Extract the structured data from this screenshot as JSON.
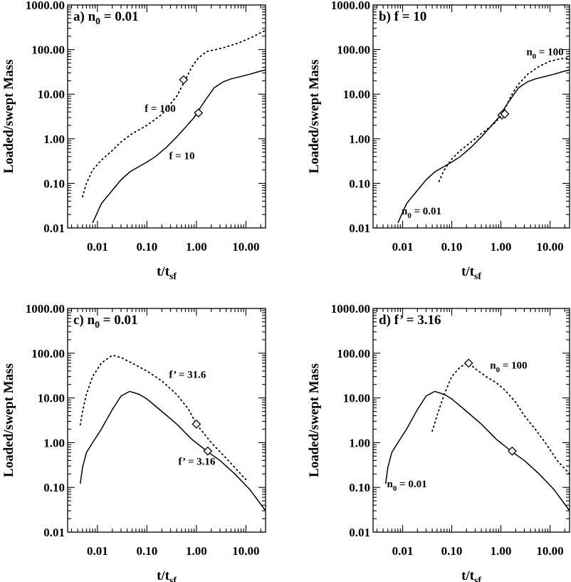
{
  "figure": {
    "y_label": "Loaded/swept Mass",
    "x_label_main": "t/t",
    "x_label_sub": "sf"
  },
  "chart_data": [
    {
      "type": "line",
      "title": "a) n",
      "title_sub": "0",
      "title_tail": " = 0.01",
      "xlabel": "t/t_sf",
      "ylabel": "Loaded/swept Mass",
      "xscale": "log",
      "yscale": "log",
      "xlim": [
        0.0025,
        25
      ],
      "ylim": [
        0.01,
        1000
      ],
      "x_ticks": [
        "0.01",
        "0.10",
        "1.00",
        "10.00"
      ],
      "y_ticks": [
        "0.01",
        "0.10",
        "1.00",
        "10.00",
        "100.00",
        "1000.00"
      ],
      "series": [
        {
          "style": "solid",
          "x": [
            0.008,
            0.012,
            0.02,
            0.03,
            0.045,
            0.07,
            0.1,
            0.15,
            0.25,
            0.4,
            0.6,
            0.9,
            1.1,
            1.6,
            2.3,
            3.5,
            5,
            8,
            12,
            18,
            25
          ],
          "y": [
            0.013,
            0.035,
            0.07,
            0.12,
            0.18,
            0.24,
            0.3,
            0.4,
            0.65,
            1.1,
            1.8,
            3.0,
            4.3,
            8.0,
            14.0,
            19.0,
            22.0,
            25.0,
            28.0,
            32.0,
            35.0
          ],
          "markers": [
            {
              "x": 1.1,
              "y": 3.8
            }
          ]
        },
        {
          "style": "dotted",
          "x": [
            0.005,
            0.006,
            0.008,
            0.012,
            0.02,
            0.03,
            0.05,
            0.1,
            0.2,
            0.4,
            0.6,
            0.8,
            1.1,
            1.6,
            2.5,
            4,
            7,
            12,
            25
          ],
          "y": [
            0.05,
            0.1,
            0.2,
            0.33,
            0.55,
            0.85,
            1.3,
            2.0,
            3.5,
            9.0,
            21.0,
            40.0,
            65.0,
            90.0,
            100.0,
            115.0,
            140.0,
            180.0,
            270.0
          ],
          "markers": [
            {
              "x": 0.55,
              "y": 21
            }
          ]
        }
      ],
      "annotations": [
        {
          "main": "f = 100",
          "sub": "",
          "tail": "",
          "x": 0.09,
          "y": 4.0
        },
        {
          "main": "f = 10",
          "sub": "",
          "tail": "",
          "x": 0.28,
          "y": 0.35
        }
      ]
    },
    {
      "type": "line",
      "title": "b) f = 10",
      "title_sub": "",
      "title_tail": "",
      "xlabel": "t/t_sf",
      "ylabel": "Loaded/swept Mass",
      "xscale": "log",
      "yscale": "log",
      "xlim": [
        0.0025,
        25
      ],
      "ylim": [
        0.01,
        1000
      ],
      "x_ticks": [
        "0.01",
        "0.10",
        "1.00",
        "10.00"
      ],
      "y_ticks": [
        "0.01",
        "0.10",
        "1.00",
        "10.00",
        "100.00",
        "1000.00"
      ],
      "series": [
        {
          "style": "solid",
          "x": [
            0.008,
            0.012,
            0.02,
            0.03,
            0.045,
            0.07,
            0.1,
            0.15,
            0.25,
            0.4,
            0.6,
            0.9,
            1.1,
            1.6,
            2.3,
            3.5,
            5,
            8,
            12,
            18,
            25
          ],
          "y": [
            0.013,
            0.035,
            0.07,
            0.12,
            0.18,
            0.24,
            0.3,
            0.4,
            0.65,
            1.1,
            1.8,
            3.0,
            4.3,
            8.0,
            14.0,
            19.0,
            22.0,
            25.0,
            28.0,
            32.0,
            35.0
          ],
          "markers": [
            {
              "x": 1.05,
              "y": 3.4
            }
          ]
        },
        {
          "style": "dotted",
          "x": [
            0.055,
            0.07,
            0.1,
            0.15,
            0.25,
            0.4,
            0.7,
            1.0,
            1.2,
            1.6,
            2.2,
            3.5,
            6,
            10,
            16,
            25
          ],
          "y": [
            0.11,
            0.2,
            0.35,
            0.55,
            0.85,
            1.3,
            2.1,
            3.2,
            4.6,
            9.0,
            16.0,
            28.0,
            42.0,
            55.0,
            62.0,
            65.0
          ],
          "markers": [
            {
              "x": 1.2,
              "y": 3.6
            }
          ]
        }
      ],
      "annotations": [
        {
          "main": "n",
          "sub": "0",
          "tail": " = 100",
          "x": 3.3,
          "y": 75
        },
        {
          "main": "n",
          "sub": "0",
          "tail": " = 0.01",
          "x": 0.0095,
          "y": 0.02
        }
      ]
    },
    {
      "type": "line",
      "title": "c) n",
      "title_sub": "0",
      "title_tail": " = 0.01",
      "xlabel": "t/t_sf",
      "ylabel": "Loaded/swept Mass",
      "xscale": "log",
      "yscale": "log",
      "xlim": [
        0.0025,
        25
      ],
      "ylim": [
        0.01,
        1000
      ],
      "x_ticks": [
        "0.01",
        "0.10",
        "1.00",
        "10.00"
      ],
      "y_ticks": [
        "0.01",
        "0.10",
        "1.00",
        "10.00",
        "100.00",
        "1000.00"
      ],
      "series": [
        {
          "style": "solid",
          "x": [
            0.0045,
            0.005,
            0.006,
            0.008,
            0.012,
            0.02,
            0.03,
            0.045,
            0.07,
            0.1,
            0.2,
            0.4,
            0.8,
            1.7,
            3,
            6,
            12,
            25
          ],
          "y": [
            0.12,
            0.28,
            0.6,
            1.0,
            2.0,
            5.5,
            11.0,
            14.0,
            12.0,
            9.5,
            5.0,
            2.6,
            1.2,
            0.62,
            0.4,
            0.2,
            0.09,
            0.03
          ],
          "markers": [
            {
              "x": 1.7,
              "y": 0.65
            }
          ]
        },
        {
          "style": "dotted",
          "x": [
            0.0045,
            0.005,
            0.006,
            0.008,
            0.012,
            0.02,
            0.03,
            0.05,
            0.1,
            0.2,
            0.4,
            0.7,
            1.0,
            2.0,
            4.0,
            10.0
          ],
          "y": [
            2.5,
            5.0,
            12.0,
            30.0,
            60.0,
            90.0,
            80.0,
            60.0,
            40.0,
            24.0,
            12.0,
            5.5,
            2.6,
            1.0,
            0.45,
            0.15
          ],
          "markers": [
            {
              "x": 1.0,
              "y": 2.6
            }
          ]
        }
      ],
      "annotations": [
        {
          "main": "f’ = 31.6",
          "sub": "",
          "tail": "",
          "x": 0.28,
          "y": 28
        },
        {
          "main": "f’ = 3.16",
          "sub": "",
          "tail": "",
          "x": 0.43,
          "y": 0.32
        }
      ]
    },
    {
      "type": "line",
      "title": "d) f’ = 3.16",
      "title_sub": "",
      "title_tail": "",
      "xlabel": "t/t_sf",
      "ylabel": "Loaded/swept Mass",
      "xscale": "log",
      "yscale": "log",
      "xlim": [
        0.0025,
        25
      ],
      "ylim": [
        0.01,
        1000
      ],
      "x_ticks": [
        "0.01",
        "0.10",
        "1.00",
        "10.00"
      ],
      "y_ticks": [
        "0.01",
        "0.10",
        "1.00",
        "10.00",
        "100.00",
        "1000.00"
      ],
      "series": [
        {
          "style": "solid",
          "x": [
            0.0045,
            0.005,
            0.006,
            0.008,
            0.012,
            0.02,
            0.03,
            0.045,
            0.07,
            0.1,
            0.2,
            0.4,
            0.8,
            1.7,
            3,
            6,
            12,
            25
          ],
          "y": [
            0.12,
            0.28,
            0.6,
            1.0,
            2.0,
            5.5,
            11.0,
            14.0,
            12.0,
            9.5,
            5.0,
            2.6,
            1.2,
            0.62,
            0.4,
            0.2,
            0.09,
            0.03
          ],
          "markers": [
            {
              "x": 1.7,
              "y": 0.65
            }
          ]
        },
        {
          "style": "dotted",
          "x": [
            0.04,
            0.05,
            0.07,
            0.1,
            0.15,
            0.22,
            0.3,
            0.5,
            0.8,
            1.2,
            2.0,
            3.0,
            5.0,
            8.0,
            14.0,
            25.0
          ],
          "y": [
            1.8,
            4.0,
            12.0,
            30.0,
            50.0,
            60.0,
            45.0,
            30.0,
            22.0,
            15.0,
            8.0,
            4.0,
            2.0,
            1.0,
            0.4,
            0.2
          ],
          "markers": [
            {
              "x": 0.22,
              "y": 60
            }
          ]
        }
      ],
      "annotations": [
        {
          "main": "n",
          "sub": "0",
          "tail": " = 100",
          "x": 0.6,
          "y": 45
        },
        {
          "main": "n",
          "sub": "0",
          "tail": " = 0.01",
          "x": 0.0048,
          "y": 0.1
        }
      ]
    }
  ]
}
